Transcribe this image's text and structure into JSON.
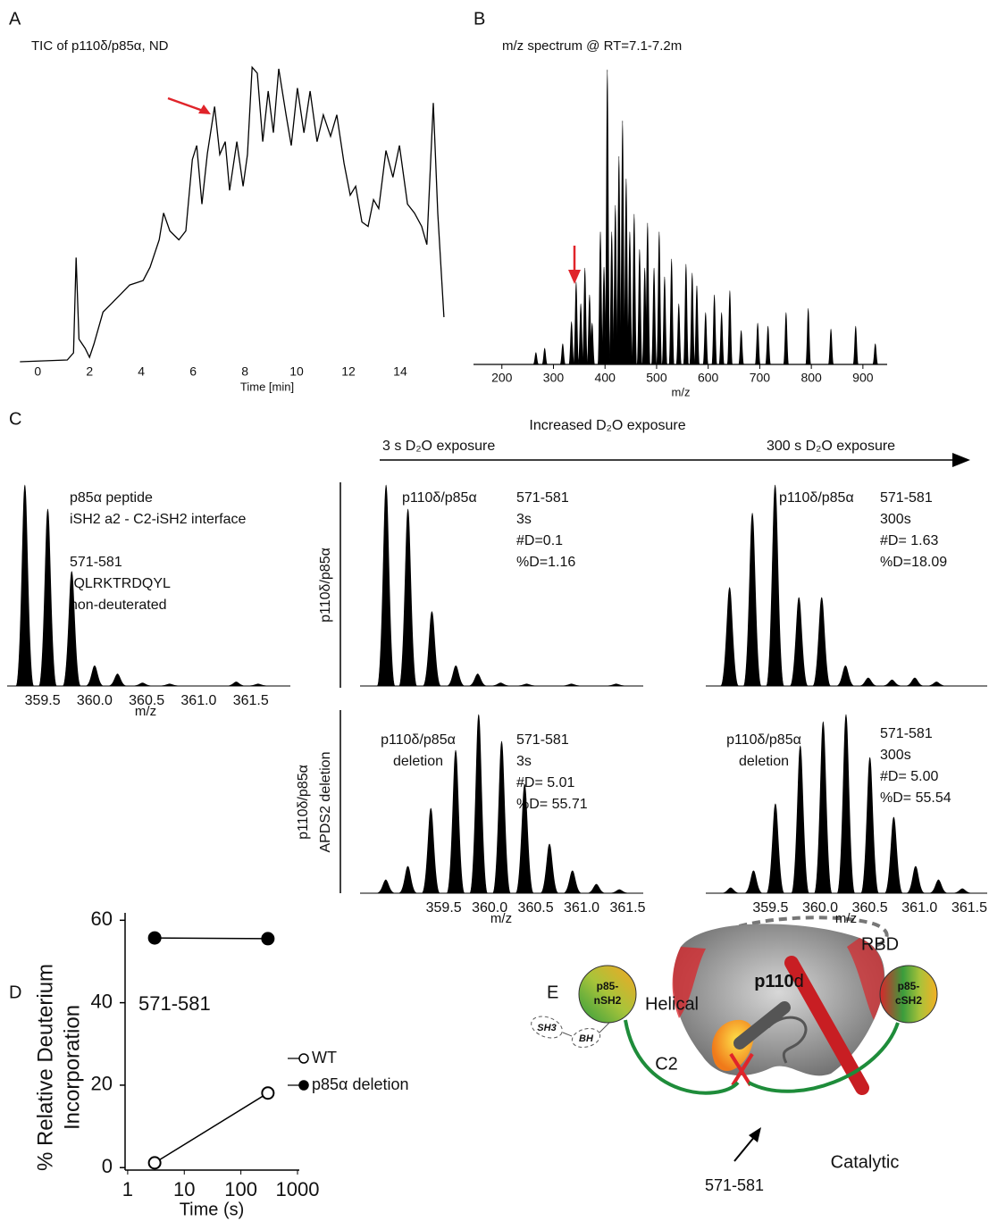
{
  "chart_data": [
    {
      "panel": "A",
      "type": "line",
      "title": "TIC of p110δ/p85α, ND",
      "xlabel": "Time [min]",
      "color": "#000000",
      "x": [
        -0.69,
        1.14,
        1.38,
        1.48,
        1.59,
        1.83,
        2.0,
        2.17,
        2.52,
        2.86,
        3.2,
        3.55,
        4.07,
        4.34,
        4.69,
        4.86,
        5.1,
        5.45,
        5.72,
        5.97,
        6.14,
        6.34,
        6.55,
        6.83,
        7.03,
        7.24,
        7.41,
        7.69,
        7.93,
        8.1,
        8.28,
        8.48,
        8.69,
        8.9,
        9.1,
        9.31,
        9.59,
        9.79,
        10.03,
        10.28,
        10.52,
        10.79,
        11.03,
        11.31,
        11.55,
        11.83,
        12.07,
        12.28,
        12.52,
        12.76,
        12.97,
        13.17,
        13.45,
        13.72,
        13.97,
        14.28,
        14.55,
        14.83,
        15.03,
        15.28,
        15.45,
        15.69
      ],
      "values": [
        0,
        0.6,
        3,
        35,
        7.6,
        4.5,
        1.5,
        6,
        16.7,
        19.7,
        22.7,
        25.8,
        27.3,
        31.8,
        41,
        50,
        44,
        41,
        44,
        68,
        72.7,
        53,
        70,
        85.8,
        69.7,
        74,
        57.6,
        74,
        59,
        69.7,
        99,
        97,
        74,
        91,
        77,
        98.5,
        83,
        72.7,
        92,
        77,
        91,
        74,
        83,
        75.8,
        83,
        66.7,
        56,
        59,
        47,
        45.5,
        54.5,
        51.5,
        71,
        62,
        72.7,
        53,
        50,
        45.5,
        39.4,
        87,
        50,
        15
      ],
      "xlim": [
        -0.7,
        15.9
      ],
      "ylim": [
        0,
        100
      ],
      "xticks": [
        0,
        2,
        4,
        6,
        8,
        10,
        12,
        14
      ]
    },
    {
      "panel": "B",
      "type": "spectrum",
      "title": "m/z spectrum @ RT=7.1-7.2m",
      "xlabel": "m/z",
      "color": "#000000",
      "x": [
        266,
        283,
        318,
        335,
        344,
        353,
        361,
        370,
        375,
        391,
        398,
        404.5,
        413,
        420,
        427,
        434,
        441,
        448,
        456.5,
        467,
        477,
        482.5,
        495,
        505,
        515.5,
        529,
        543,
        557,
        569,
        578,
        595,
        612,
        626,
        642,
        664,
        696,
        716,
        751,
        794,
        838,
        886,
        924
      ],
      "values": [
        4,
        5.5,
        7,
        14.5,
        28,
        20.6,
        32.7,
        23.6,
        14,
        45,
        33,
        100,
        45,
        54,
        70.6,
        82.7,
        63,
        45,
        51,
        39,
        32.7,
        48,
        32.7,
        45,
        29.7,
        35.8,
        20.6,
        34,
        31,
        26.7,
        17.6,
        23.6,
        17.6,
        25,
        11.5,
        14,
        13,
        17.6,
        19,
        12,
        13,
        7
      ],
      "xlim": [
        145,
        947
      ],
      "ylim": [
        0,
        100
      ],
      "xticks": [
        200,
        300,
        400,
        500,
        600,
        700,
        800,
        900
      ]
    },
    {
      "panel": "C",
      "type": "spectrum",
      "description": [
        "p85α peptide",
        "iSH2 a2 - C2-iSH2 interface"
      ],
      "annotations": [
        "571-581",
        "IQLRKTRDQYL",
        "non-deuterated"
      ],
      "xlabel": "m/z",
      "color": "#000000",
      "x": [
        359.33,
        359.55,
        359.78,
        360.0,
        360.22,
        360.46,
        360.72,
        361.36,
        361.57
      ],
      "values": [
        100,
        88,
        57,
        10,
        6,
        1.5,
        1,
        2,
        1
      ],
      "xlim": [
        359.16,
        361.88
      ],
      "ylim": [
        0,
        100
      ],
      "xticks": [
        359.5,
        {
          "value": 360,
          "label": "360.0"
        },
        360.5,
        {
          "value": 361,
          "label": "361.0"
        },
        361.5
      ]
    },
    {
      "type": "spectrum",
      "row_label": [
        "p110δ/p85α"
      ],
      "sample": [
        "p110δ/p85α"
      ],
      "annotations": [
        "571-581",
        "3s",
        "#D=0.1",
        "%D=1.16"
      ],
      "color": "#000000",
      "x": [
        359.41,
        359.62,
        359.85,
        360.08,
        360.29,
        360.51,
        360.76,
        361.19,
        361.62
      ],
      "values": [
        100,
        88,
        37,
        10,
        6,
        1.5,
        1,
        1,
        1
      ],
      "xlim": [
        359.16,
        361.88
      ],
      "ylim": [
        0,
        100
      ]
    },
    {
      "type": "spectrum",
      "sample": [
        "p110δ/p85α"
      ],
      "annotations": [
        "571-581",
        "300s",
        "#D= 1.63",
        "%D=18.09"
      ],
      "color": "#000000",
      "x": [
        359.39,
        359.61,
        359.83,
        360.06,
        360.28,
        360.51,
        360.73,
        360.96,
        361.18,
        361.39
      ],
      "values": [
        49,
        86,
        100,
        44,
        44,
        10,
        4,
        3,
        4,
        2
      ],
      "xlim": [
        359.16,
        361.88
      ],
      "ylim": [
        0,
        100
      ]
    },
    {
      "type": "spectrum",
      "row_label": [
        "p110δ/p85α",
        "APDS2 deletion"
      ],
      "sample": [
        "p110δ/p85α",
        "deletion"
      ],
      "annotations": [
        "571-581",
        "3s",
        "#D= 5.01",
        "%D= 55.71"
      ],
      "xlabel": "m/z",
      "color": "#000000",
      "x": [
        358.87,
        359.11,
        359.36,
        359.63,
        359.88,
        360.13,
        360.38,
        360.65,
        360.9,
        361.16,
        361.41
      ],
      "values": [
        7.5,
        15,
        47.5,
        80,
        100,
        85,
        61,
        27.5,
        12.5,
        5,
        2
      ],
      "xlim": [
        358.59,
        361.67
      ],
      "ylim": [
        0,
        100
      ],
      "xticks": [
        359.5,
        {
          "value": 360,
          "label": "360.0"
        },
        360.5,
        {
          "value": 361,
          "label": "361.0"
        },
        361.5
      ]
    },
    {
      "type": "spectrum",
      "sample": [
        "p110δ/p85α",
        "deletion"
      ],
      "annotations": [
        "571-581",
        "300s",
        "#D= 5.00",
        "%D= 55.54"
      ],
      "xlabel": "m/z",
      "color": "#000000",
      "x": [
        359.1,
        359.33,
        359.55,
        359.8,
        360.03,
        360.26,
        360.5,
        360.74,
        360.96,
        361.19,
        361.43
      ],
      "values": [
        3,
        12.5,
        50,
        82.5,
        96,
        100,
        76,
        42.5,
        15,
        7.5,
        2.5
      ],
      "xlim": [
        358.85,
        361.68
      ],
      "ylim": [
        0,
        100
      ],
      "xticks": [
        359.5,
        {
          "value": 360,
          "label": "360.0"
        },
        360.5,
        {
          "value": 361,
          "label": "361.0"
        },
        361.5
      ]
    },
    {
      "panel": "D",
      "type": "line",
      "title": "571-581",
      "ylabel": [
        "% Relative Deuterium",
        "Incorporation"
      ],
      "xlabel": "Time (s)",
      "xscale": "log",
      "x": [
        3,
        300
      ],
      "series": [
        {
          "name": "WT",
          "color": "#000000",
          "filled": false,
          "values": [
            1.16,
            18.09
          ]
        },
        {
          "name": "p85α deletion",
          "color": "#000000",
          "filled": true,
          "values": [
            55.71,
            55.54
          ]
        }
      ],
      "xlim": [
        0.9,
        1000
      ],
      "ylim": [
        -0.6,
        61.8
      ],
      "xticks": [
        1,
        10,
        100,
        1000
      ],
      "yticks": [
        0,
        20,
        40,
        60
      ],
      "legend": "right"
    }
  ],
  "panel_c_header": {
    "label": "Increased D₂O exposure",
    "start": "3 s D₂O exposure",
    "end": "300 s D₂O exposure"
  },
  "diagram": {
    "panel": "E",
    "labels": {
      "helical": "Helical",
      "rbd": "RBD",
      "p110": "p110",
      "p110_suffix": "d",
      "nsh2": [
        "p85-",
        "nSH2"
      ],
      "csh2": [
        "p85-",
        "cSH2"
      ],
      "sh3": "SH3",
      "bh": "BH",
      "c2": "C2",
      "catalytic": "Catalytic",
      "site": "571-581"
    }
  }
}
